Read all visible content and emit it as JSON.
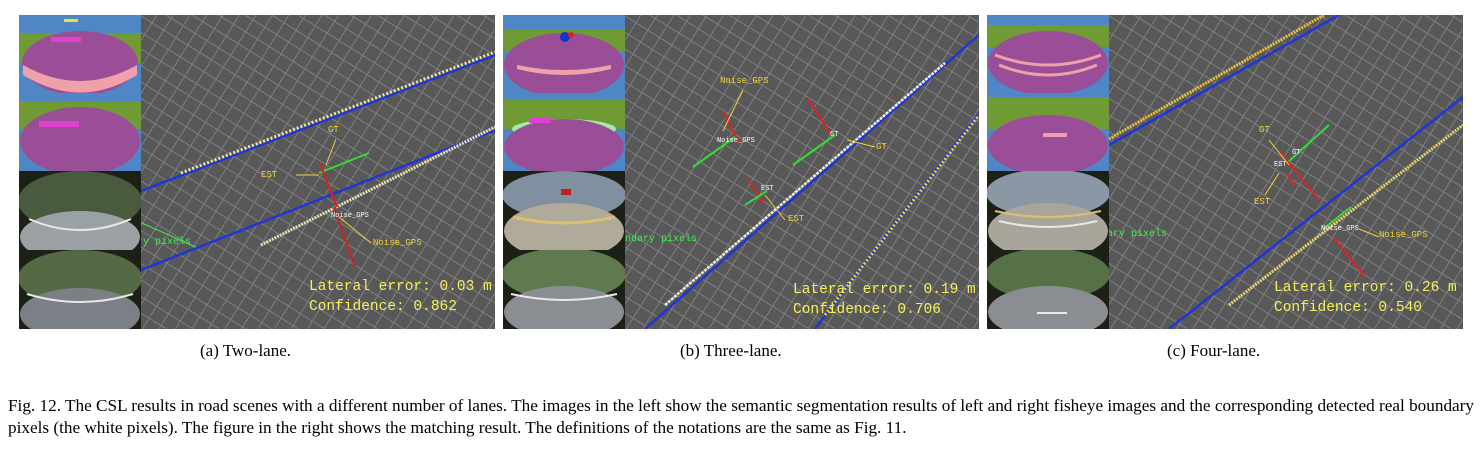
{
  "panels": [
    {
      "subcaption": "(a) Two-lane.",
      "lateral_error": "Lateral error: 0.03 m",
      "confidence": "Confidence: 0.862",
      "labels": {
        "gt": "GT",
        "est": "EST",
        "noise_gps": "Noise_GPS",
        "noise_gps_marker": "Noise_GPS",
        "real_boundary": "Real boundary pixels"
      }
    },
    {
      "subcaption": "(b) Three-lane.",
      "lateral_error": "Lateral error: 0.19 m",
      "confidence": "Confidence: 0.706",
      "labels": {
        "gt": "GT",
        "est": "EST",
        "noise_gps": "Noise_GPS",
        "noise_gps_marker": "Noise_GPS",
        "real_boundary": "Real boundary pixels"
      }
    },
    {
      "subcaption": "(c) Four-lane.",
      "lateral_error": "Lateral error: 0.26 m",
      "confidence": "Confidence: 0.540",
      "labels": {
        "gt": "GT",
        "est": "EST",
        "noise_gps": "Noise_GPS",
        "noise_gps_marker": "Noise_GPS",
        "real_boundary": "Real boundary pixels"
      }
    }
  ],
  "figure_caption": "Fig. 12.   The CSL results in road scenes with a different number of lanes. The images in the left show the semantic segmentation results of left and right fisheye images and the corresponding detected real boundary pixels (the white pixels). The figure in the right shows the matching result. The definitions of the notations are the same as Fig. 11.",
  "colors": {
    "lane_line": "#1f35d8",
    "gt_marker": "#33dd33",
    "est_marker": "#dd2222",
    "noise_marker": "#cc2222",
    "text_yellow": "#f6f05a",
    "annotation_yellow": "#f3d23a",
    "seg_sky": "#4f86c6",
    "seg_veg": "#6f9a34",
    "seg_road": "#9a4e98",
    "seg_marking": "#f0a0a8"
  }
}
